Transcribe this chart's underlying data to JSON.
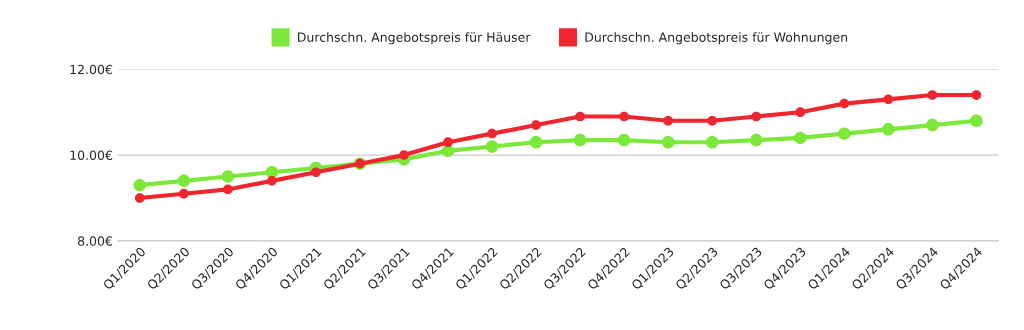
{
  "chart_data": {
    "type": "line",
    "categories": [
      "Q1/2020",
      "Q2/2020",
      "Q3/2020",
      "Q4/2020",
      "Q1/2021",
      "Q2/2021",
      "Q3/2021",
      "Q4/2021",
      "Q1/2022",
      "Q2/2022",
      "Q3/2022",
      "Q4/2022",
      "Q1/2023",
      "Q2/2023",
      "Q3/2023",
      "Q4/2023",
      "Q1/2024",
      "Q2/2024",
      "Q3/2024",
      "Q4/2024"
    ],
    "series": [
      {
        "name": "Durchschn. Angebotspreis für Häuser",
        "color": "#7be83a",
        "values": [
          9.3,
          9.4,
          9.5,
          9.6,
          9.7,
          9.8,
          9.9,
          10.1,
          10.2,
          10.3,
          10.35,
          10.35,
          10.3,
          10.3,
          10.35,
          10.4,
          10.5,
          10.6,
          10.7,
          10.8
        ]
      },
      {
        "name": "Durchschn. Angebotspreis für Wohnungen",
        "color": "#f0262e",
        "values": [
          9.0,
          9.1,
          9.2,
          9.4,
          9.6,
          9.8,
          10.0,
          10.3,
          10.5,
          10.7,
          10.9,
          10.9,
          10.8,
          10.8,
          10.9,
          11.0,
          11.2,
          11.3,
          11.4,
          11.4
        ]
      }
    ],
    "ylim": [
      8,
      12
    ],
    "yticks": [
      {
        "value": 8,
        "label": "8.00€"
      },
      {
        "value": 10,
        "label": "10.00€"
      },
      {
        "value": 12,
        "label": "12.00€"
      }
    ],
    "grid": "y",
    "legend": "top",
    "marker": "circle",
    "line_style": "solid"
  }
}
